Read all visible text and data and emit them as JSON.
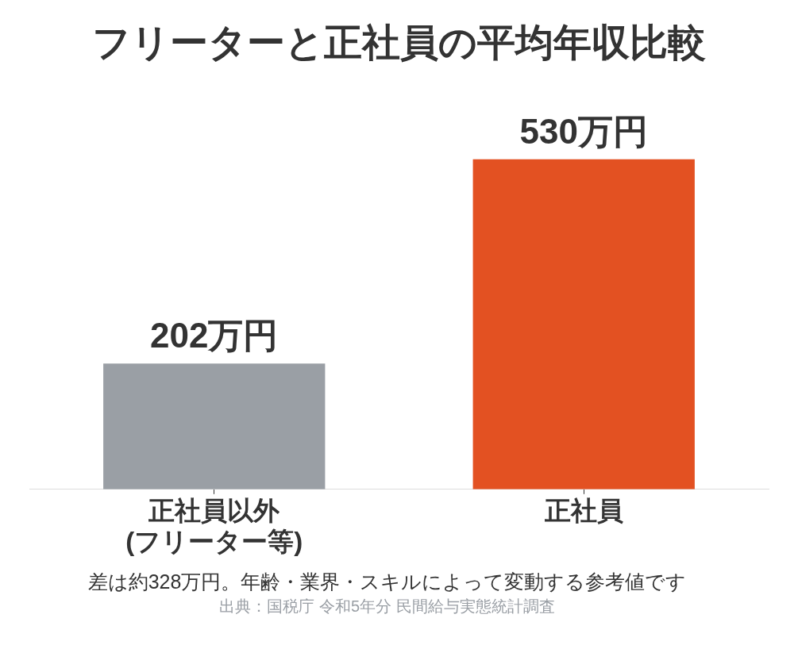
{
  "chart_data": {
    "type": "bar",
    "title": "フリーターと正社員の平均年収比較",
    "categories": [
      "正社員以外\n(フリーター等)",
      "正社員"
    ],
    "values": [
      202,
      530
    ],
    "colors": [
      "#9a9fa5",
      "#e35122"
    ],
    "value_labels": [
      "202万円",
      "530万円"
    ],
    "annotations": [
      "差は約328万円。年齢・業界・スキルによって変動する参考値です",
      "出典：国税庁 令和5年分 民間給与実態統計調査"
    ],
    "grid": false,
    "legend": false
  }
}
